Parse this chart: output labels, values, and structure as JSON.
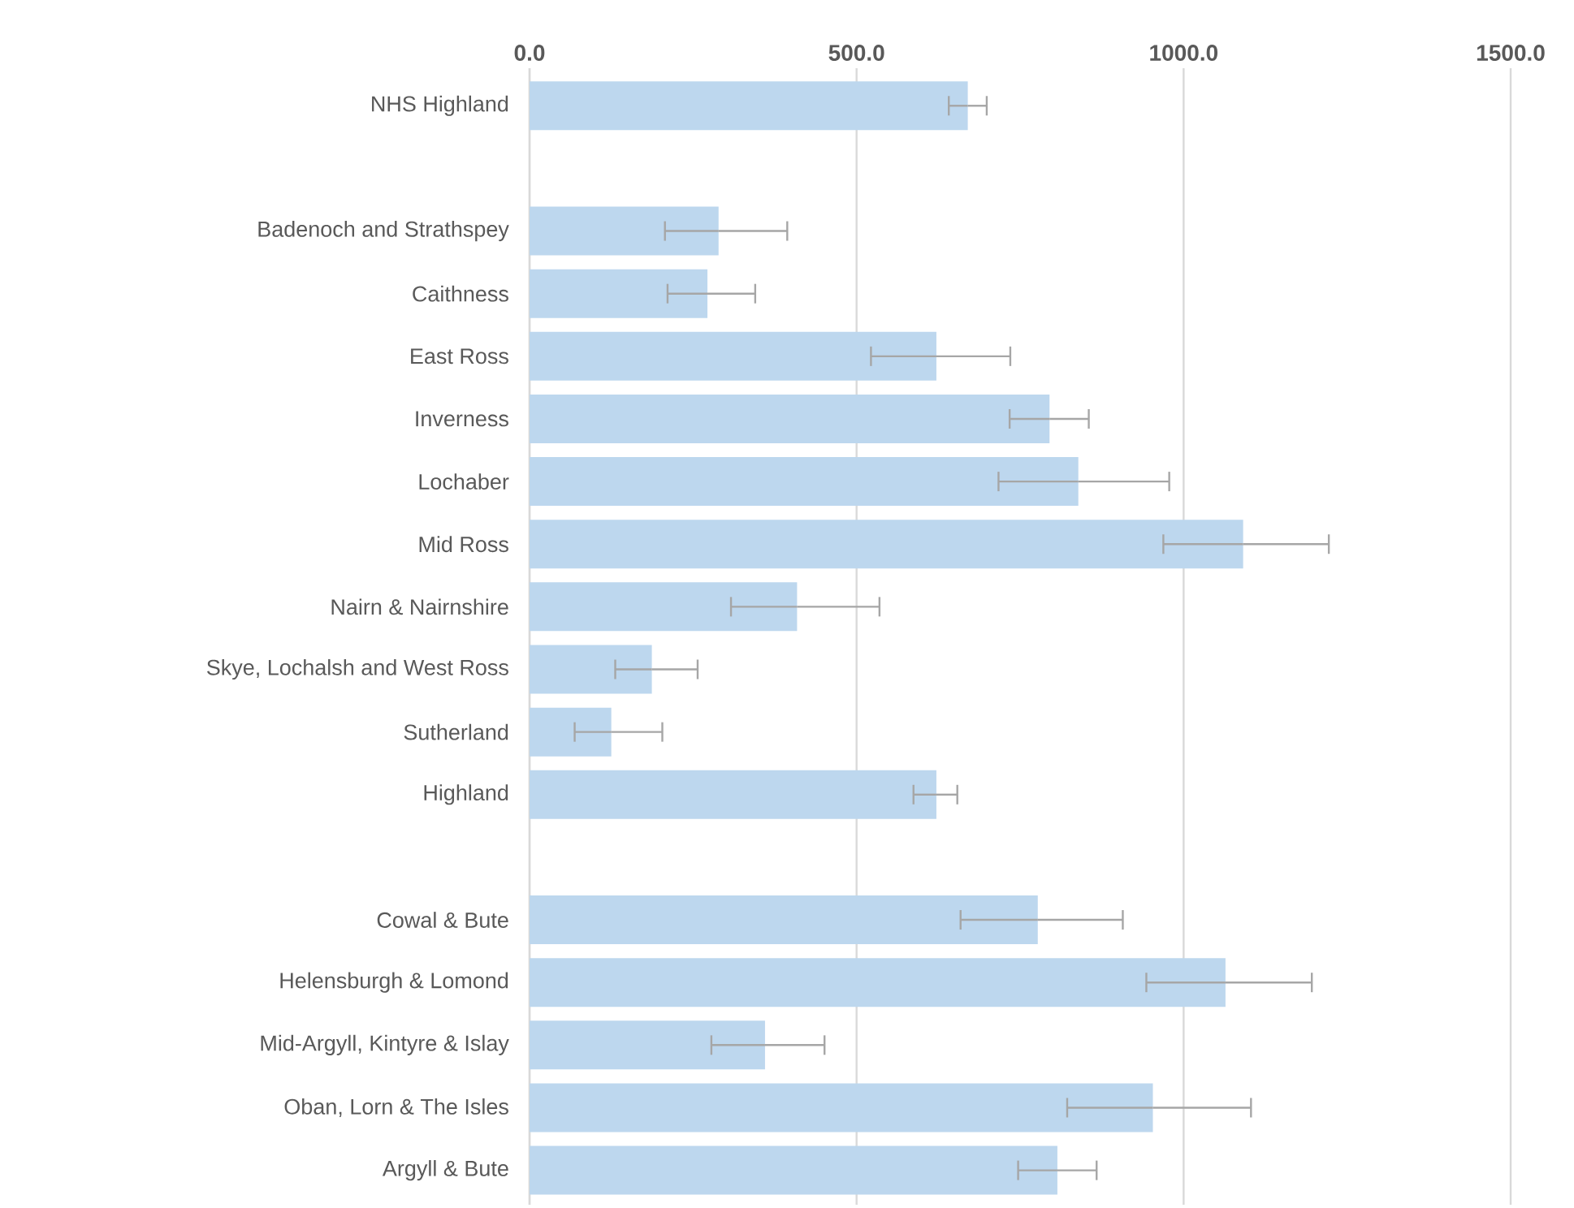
{
  "chart_data": {
    "type": "bar",
    "orientation": "horizontal",
    "color": "#bdd7ee",
    "categories": [
      "NHS Highland",
      null,
      "Badenoch and Strathspey",
      "Caithness",
      "East Ross",
      "Inverness",
      "Lochaber",
      "Mid Ross",
      "Nairn & Nairnshire",
      "Skye, Lochalsh and West Ross",
      "Sutherland",
      "Highland",
      null,
      "Cowal & Bute",
      "Helensburgh & Lomond",
      "Mid-Argyll, Kintyre & Islay",
      "Oban, Lorn & The Isles",
      "Argyll & Bute"
    ],
    "values": [
      670,
      null,
      289,
      272,
      622,
      795,
      839,
      1091,
      409,
      187,
      125,
      622,
      null,
      777,
      1064,
      360,
      953,
      807
    ],
    "errors": [
      [
        641,
        699
      ],
      null,
      [
        207,
        394
      ],
      [
        211,
        345
      ],
      [
        522,
        735
      ],
      [
        734,
        855
      ],
      [
        717,
        978
      ],
      [
        969,
        1222
      ],
      [
        308,
        535
      ],
      [
        131,
        257
      ],
      [
        69,
        203
      ],
      [
        587,
        654
      ],
      null,
      [
        659,
        907
      ],
      [
        943,
        1196
      ],
      [
        278,
        451
      ],
      [
        822,
        1103
      ],
      [
        747,
        867
      ]
    ],
    "xlim": [
      0,
      1500
    ],
    "xticks": [
      {
        "value": 0,
        "label": "0.0"
      },
      {
        "value": 500,
        "label": "500.0"
      },
      {
        "value": 1000,
        "label": "1000.0"
      },
      {
        "value": 1500,
        "label": "1500.0"
      }
    ],
    "grid": "x"
  }
}
